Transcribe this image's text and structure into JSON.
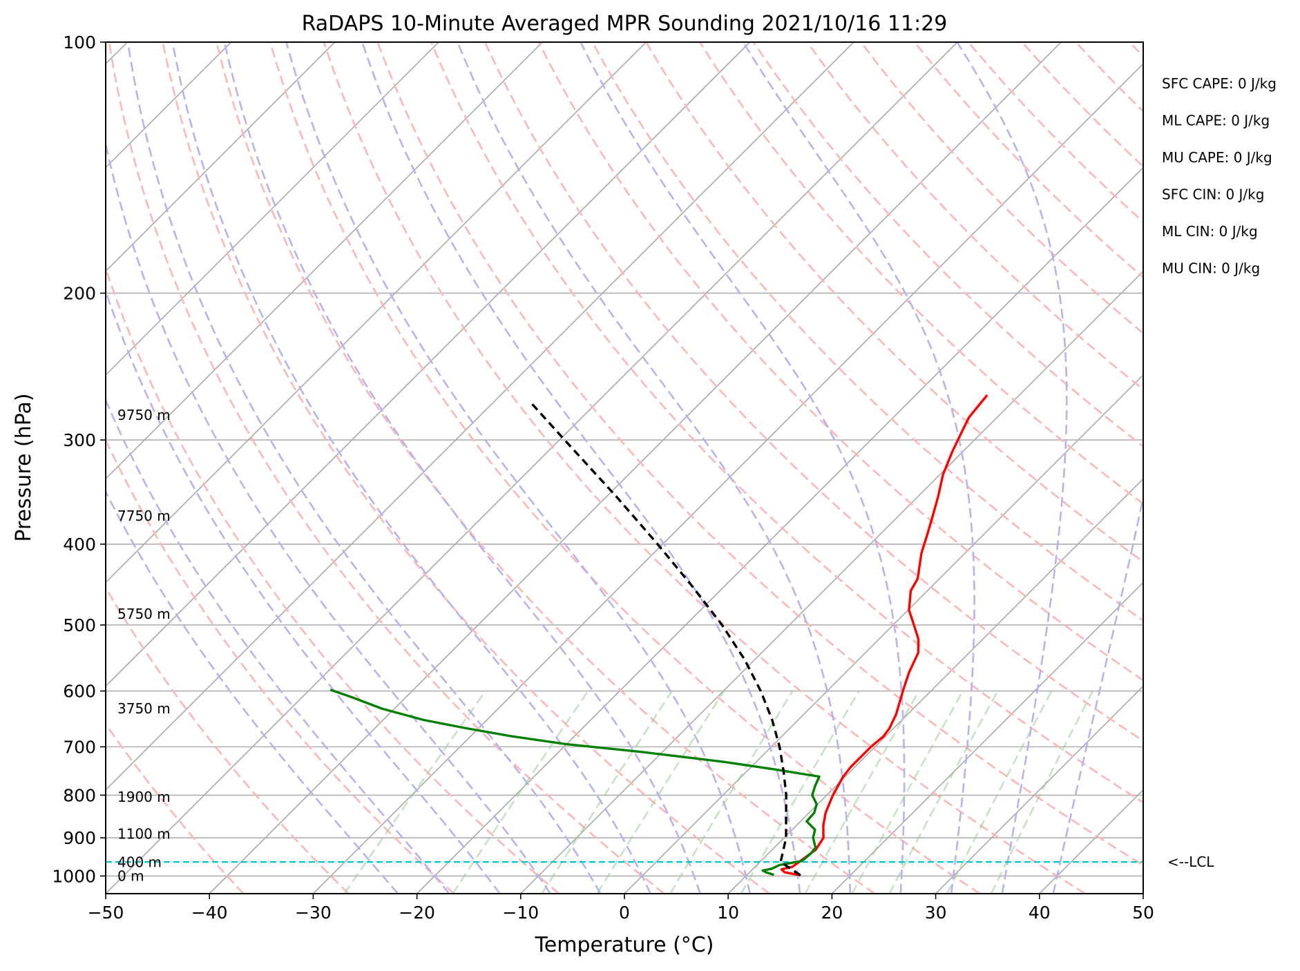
{
  "chart_data": {
    "type": "line",
    "subtype": "skew-T log-P sounding diagram",
    "title": "RaDAPS 10-Minute Averaged MPR Sounding 2021/10/16 11:29",
    "xlabel": "Temperature (°C)",
    "ylabel": "Pressure (hPa)",
    "xlim": [
      -50,
      50
    ],
    "ylim": [
      1050,
      100
    ],
    "y_scale": "log",
    "x_ticks": [
      "−50",
      "−40",
      "−30",
      "−20",
      "−10",
      "0",
      "10",
      "20",
      "30",
      "40",
      "50"
    ],
    "y_ticks": [
      "100",
      "200",
      "300",
      "400",
      "500",
      "600",
      "700",
      "800",
      "900",
      "1000"
    ],
    "height_labels": [
      {
        "label": "0 m",
        "pressure": 1000
      },
      {
        "label": "400 m",
        "pressure": 963
      },
      {
        "label": "1100 m",
        "pressure": 890
      },
      {
        "label": "1900 m",
        "pressure": 804
      },
      {
        "label": "3750 m",
        "pressure": 630
      },
      {
        "label": "5750 m",
        "pressure": 485
      },
      {
        "label": "7750 m",
        "pressure": 370
      },
      {
        "label": "9750 m",
        "pressure": 280
      }
    ],
    "indices": [
      "SFC CAPE: 0 J/kg",
      "ML CAPE: 0 J/kg",
      "MU CAPE: 0 J/kg",
      "SFC CIN: 0 J/kg",
      "ML CIN: 0 J/kg",
      "MU CIN: 0 J/kg"
    ],
    "lcl": {
      "label": "<--LCL",
      "pressure": 962
    },
    "series": [
      {
        "role": "temperature",
        "color": "#ff0000",
        "points": [
          [
            998,
            15.2
          ],
          [
            990,
            13.4
          ],
          [
            982,
            12.8
          ],
          [
            975,
            13.6
          ],
          [
            960,
            13.8
          ],
          [
            930,
            14.2
          ],
          [
            900,
            13.8
          ],
          [
            870,
            12.6
          ],
          [
            840,
            11.6
          ],
          [
            800,
            10.6
          ],
          [
            760,
            9.8
          ],
          [
            740,
            9.6
          ],
          [
            720,
            9.6
          ],
          [
            700,
            9.6
          ],
          [
            680,
            9.8
          ],
          [
            665,
            9.6
          ],
          [
            640,
            8.9
          ],
          [
            600,
            7.3
          ],
          [
            570,
            6.1
          ],
          [
            540,
            5.1
          ],
          [
            520,
            3.8
          ],
          [
            500,
            2.0
          ],
          [
            480,
            0.1
          ],
          [
            455,
            -1.6
          ],
          [
            440,
            -2.1
          ],
          [
            410,
            -4.2
          ],
          [
            390,
            -5.4
          ],
          [
            370,
            -6.7
          ],
          [
            350,
            -8.1
          ],
          [
            330,
            -9.7
          ],
          [
            310,
            -11.0
          ],
          [
            295,
            -11.9
          ],
          [
            282,
            -12.7
          ],
          [
            265,
            -13.1
          ]
        ]
      },
      {
        "role": "dewpoint",
        "color": "#008000",
        "points": [
          [
            997,
            12.6
          ],
          [
            990,
            11.6
          ],
          [
            985,
            11.1
          ],
          [
            980,
            11.8
          ],
          [
            970,
            12.2
          ],
          [
            960,
            13.9
          ],
          [
            955,
            14.0
          ],
          [
            940,
            14.1
          ],
          [
            925,
            14.0
          ],
          [
            900,
            12.8
          ],
          [
            880,
            12.2
          ],
          [
            860,
            10.6
          ],
          [
            840,
            10.5
          ],
          [
            820,
            9.9
          ],
          [
            800,
            8.6
          ],
          [
            780,
            8.0
          ],
          [
            760,
            7.5
          ],
          [
            745,
            2.5
          ],
          [
            730,
            -3.0
          ],
          [
            710,
            -12.0
          ],
          [
            695,
            -20.0
          ],
          [
            680,
            -26.0
          ],
          [
            665,
            -31.2
          ],
          [
            650,
            -36.1
          ],
          [
            630,
            -41.2
          ],
          [
            610,
            -45.3
          ],
          [
            598,
            -48.0
          ]
        ]
      },
      {
        "role": "parcel",
        "color": "#000000",
        "style": "dashed",
        "points": [
          [
            998,
            15.2
          ],
          [
            962,
            12.0
          ],
          [
            900,
            10.2
          ],
          [
            850,
            8.2
          ],
          [
            800,
            6.1
          ],
          [
            750,
            3.6
          ],
          [
            700,
            0.8
          ],
          [
            650,
            -2.5
          ],
          [
            600,
            -6.4
          ],
          [
            550,
            -11.0
          ],
          [
            500,
            -16.5
          ],
          [
            450,
            -23.0
          ],
          [
            400,
            -30.5
          ],
          [
            350,
            -39.2
          ],
          [
            300,
            -49.5
          ],
          [
            270,
            -56.5
          ]
        ]
      }
    ],
    "grid": true,
    "background_lines": {
      "isotherm_color": "#a9a9a9",
      "dry_adiabat_color": "#ffb6b6",
      "moist_adiabat_color": "#b4b4f0",
      "mixing_ratio_color": "#98cc98",
      "lcl_color": "#00c8c8"
    }
  }
}
